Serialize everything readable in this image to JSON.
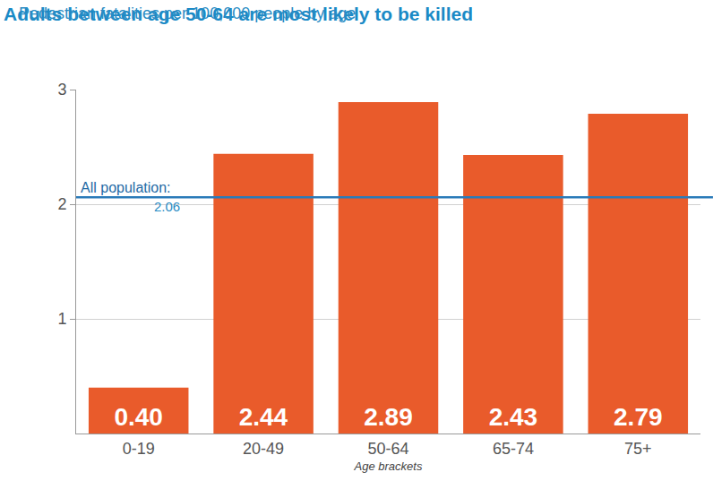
{
  "chart_data": {
    "type": "bar",
    "title": "Adults between age 50-64 are most likely to be killed",
    "subtitle": "Pedestrian fatalities per 100,000 people by age",
    "xlabel": "Age brackets",
    "categories": [
      "0-19",
      "20-49",
      "50-64",
      "65-74",
      "75+"
    ],
    "values": [
      0.4,
      2.44,
      2.89,
      2.43,
      2.79
    ],
    "value_labels": [
      "0.40",
      "2.44",
      "2.89",
      "2.43",
      "2.79"
    ],
    "data_labels": true,
    "color": "#e95b2b",
    "ylim": [
      0,
      3
    ],
    "yticks": [
      1,
      2,
      3
    ],
    "grid": true,
    "reference_line": {
      "label": "All population:",
      "value": 2.06
    }
  }
}
